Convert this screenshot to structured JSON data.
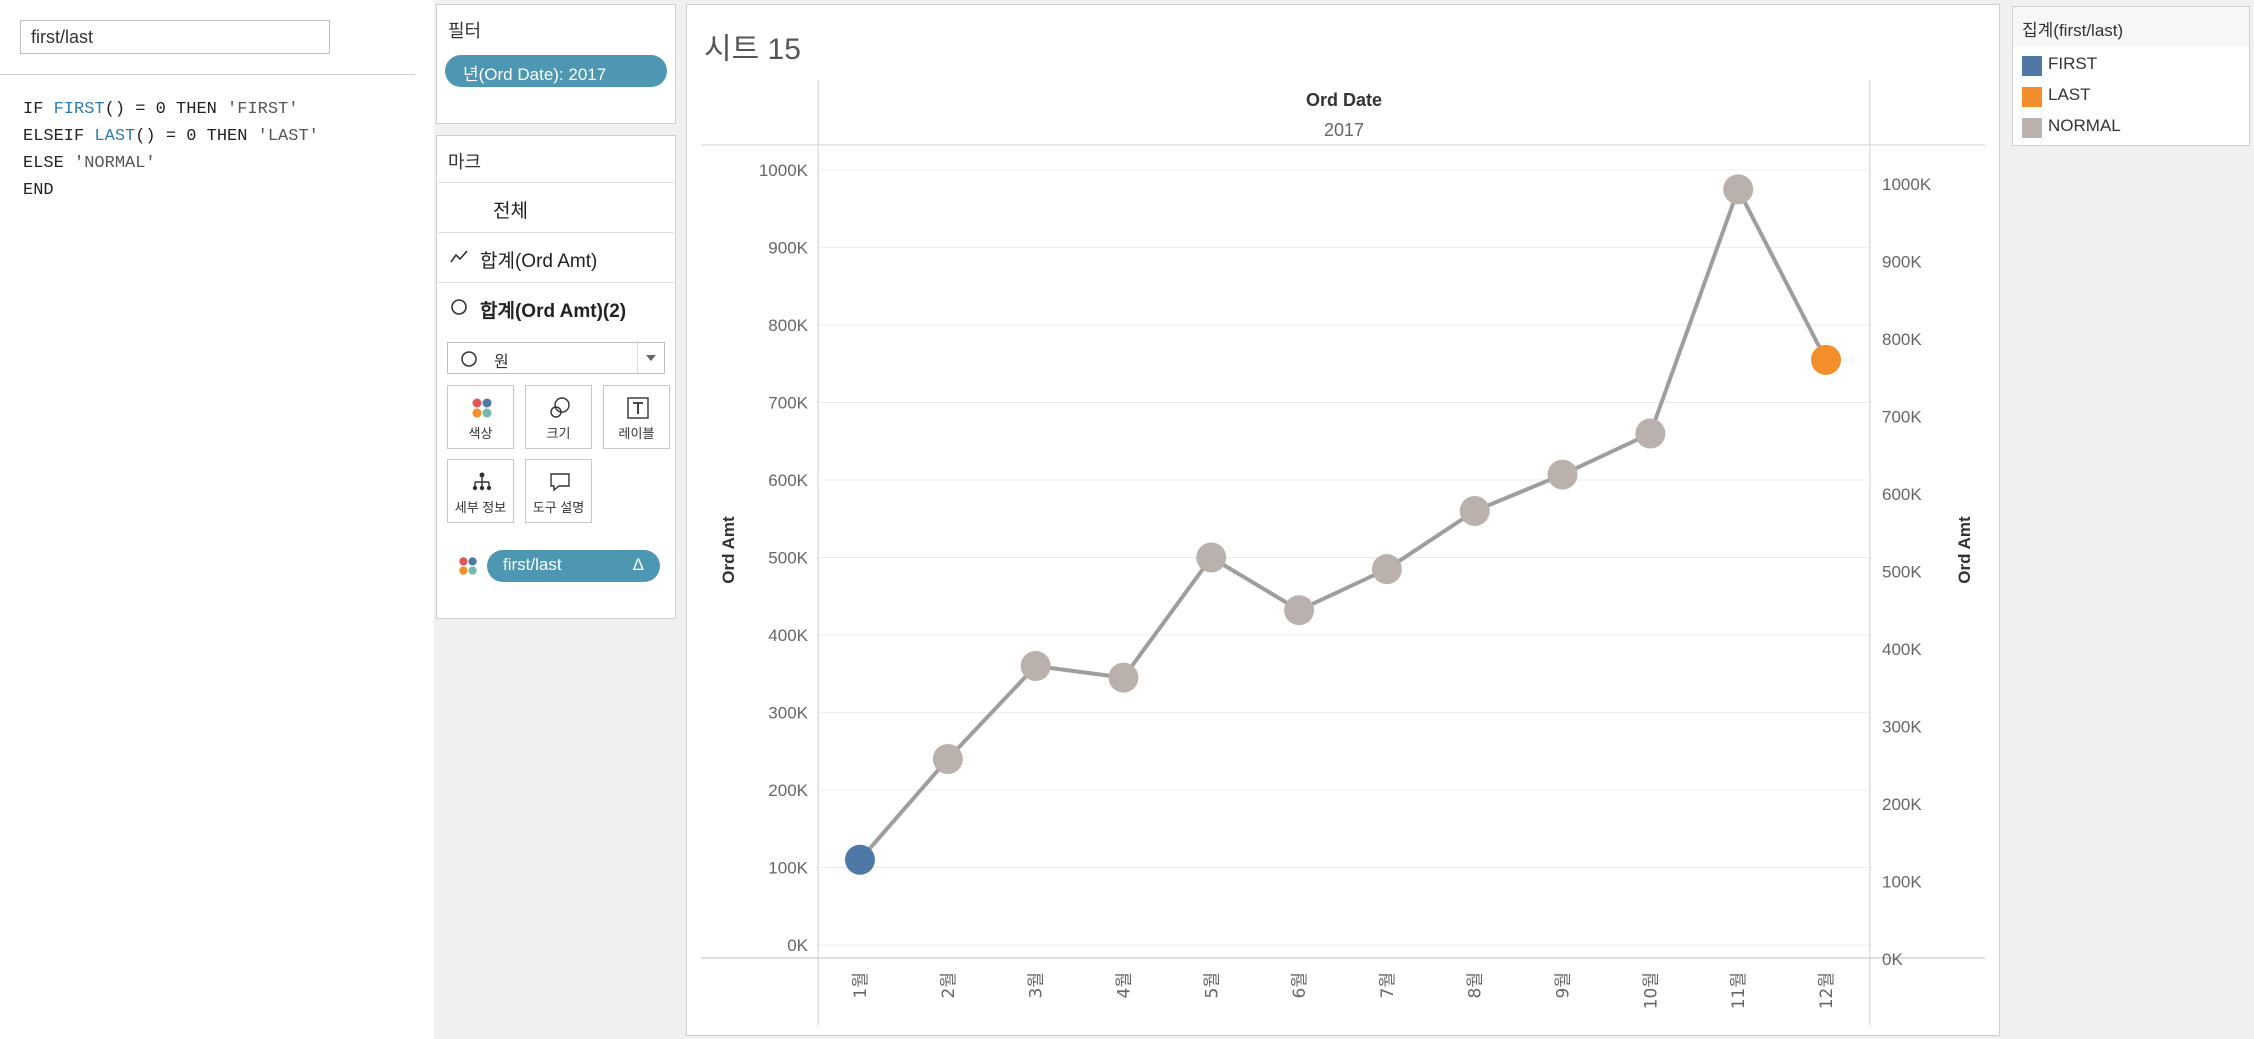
{
  "calc": {
    "name": "first/last",
    "code": [
      [
        {
          "t": "IF ",
          "c": ""
        },
        {
          "t": "FIRST",
          "c": "fn"
        },
        {
          "t": "() = 0 THEN ",
          "c": ""
        },
        {
          "t": "'FIRST'",
          "c": "str"
        }
      ],
      [
        {
          "t": "ELSEIF ",
          "c": ""
        },
        {
          "t": "LAST",
          "c": "fn"
        },
        {
          "t": "() = 0 THEN ",
          "c": ""
        },
        {
          "t": "'LAST'",
          "c": "str"
        }
      ],
      [
        {
          "t": "ELSE ",
          "c": ""
        },
        {
          "t": "'NORMAL'",
          "c": "str"
        }
      ],
      [
        {
          "t": "END",
          "c": ""
        }
      ]
    ]
  },
  "filters": {
    "title": "필터",
    "pill": "년(Ord Date): 2017"
  },
  "marks": {
    "title": "마크",
    "rows": [
      {
        "label": "전체",
        "icon": "none"
      },
      {
        "label": "합계(Ord Amt)",
        "icon": "line-icon"
      },
      {
        "label": "합계(Ord Amt)(2)",
        "icon": "circle-icon"
      }
    ],
    "mark_type": "원",
    "tiles": [
      {
        "label": "색상",
        "icon": "color-icon"
      },
      {
        "label": "크기",
        "icon": "size-icon"
      },
      {
        "label": "레이블",
        "icon": "label-icon"
      },
      {
        "label": "세부 정보",
        "icon": "detail-icon"
      },
      {
        "label": "도구 설명",
        "icon": "tooltip-icon"
      }
    ],
    "color_pill": "first/last",
    "color_pill_symbol": "Δ"
  },
  "sheet": {
    "title": "시트 15"
  },
  "legend": {
    "title": "집계(first/last)",
    "items": [
      {
        "label": "FIRST",
        "color": "#4e79a7"
      },
      {
        "label": "LAST",
        "color": "#f28e2b"
      },
      {
        "label": "NORMAL",
        "color": "#bab0ac"
      }
    ]
  },
  "chart_data": {
    "type": "line",
    "column_header": "Ord Date",
    "column_value": "2017",
    "ylabel": "Ord Amt",
    "ylabel_right": "Ord Amt",
    "ylim": [
      0,
      1000000
    ],
    "yticks": [
      "0K",
      "100K",
      "200K",
      "300K",
      "400K",
      "500K",
      "600K",
      "700K",
      "800K",
      "900K",
      "1000K"
    ],
    "categories": [
      "1월",
      "2월",
      "3월",
      "4월",
      "5월",
      "6월",
      "7월",
      "8월",
      "9월",
      "10월",
      "11월",
      "12월"
    ],
    "values": [
      110000,
      240000,
      360000,
      345000,
      500000,
      432000,
      485000,
      560000,
      607000,
      660000,
      975000,
      755000
    ],
    "point_class": [
      "FIRST",
      "NORMAL",
      "NORMAL",
      "NORMAL",
      "NORMAL",
      "NORMAL",
      "NORMAL",
      "NORMAL",
      "NORMAL",
      "NORMAL",
      "NORMAL",
      "LAST"
    ],
    "line_color": "#9e9e9e",
    "class_colors": {
      "FIRST": "#4e79a7",
      "LAST": "#f28e2b",
      "NORMAL": "#bab0ac"
    },
    "grid": true
  }
}
